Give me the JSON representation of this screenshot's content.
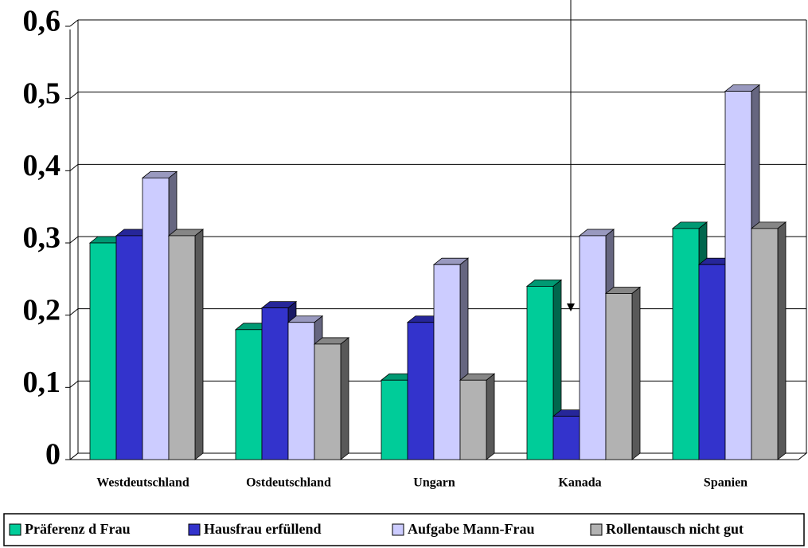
{
  "chart_data": {
    "type": "bar3d",
    "categories": [
      "Westdeutschland",
      "Ostdeutschland",
      "Ungarn",
      "Kanada",
      "Spanien"
    ],
    "series": [
      {
        "name": "Präferenz d Frau",
        "color": "#00cc99",
        "values": [
          0.3,
          0.18,
          0.11,
          0.24,
          0.32
        ]
      },
      {
        "name": "Hausfrau erfüllend",
        "color": "#3333cc",
        "values": [
          0.31,
          0.21,
          0.19,
          0.06,
          0.27
        ]
      },
      {
        "name": "Aufgabe Mann-Frau",
        "color": "#ccccff",
        "values": [
          0.39,
          0.19,
          0.27,
          0.31,
          0.51
        ]
      },
      {
        "name": "Rollentausch nicht gut",
        "color": "#b2b2b2",
        "values": [
          0.31,
          0.16,
          0.11,
          0.23,
          0.32
        ]
      }
    ],
    "ylim": [
      0,
      0.6
    ],
    "yticks": [
      0,
      {
        "value": 0.1,
        "label": "0,1"
      },
      {
        "value": 0.2,
        "label": "0,2"
      },
      {
        "value": 0.3,
        "label": "0,3"
      },
      {
        "value": 0.4,
        "label": "0,4"
      },
      {
        "value": 0.5,
        "label": "0,5"
      },
      {
        "value": 0.6,
        "label": "0,6"
      }
    ],
    "grid": true
  }
}
